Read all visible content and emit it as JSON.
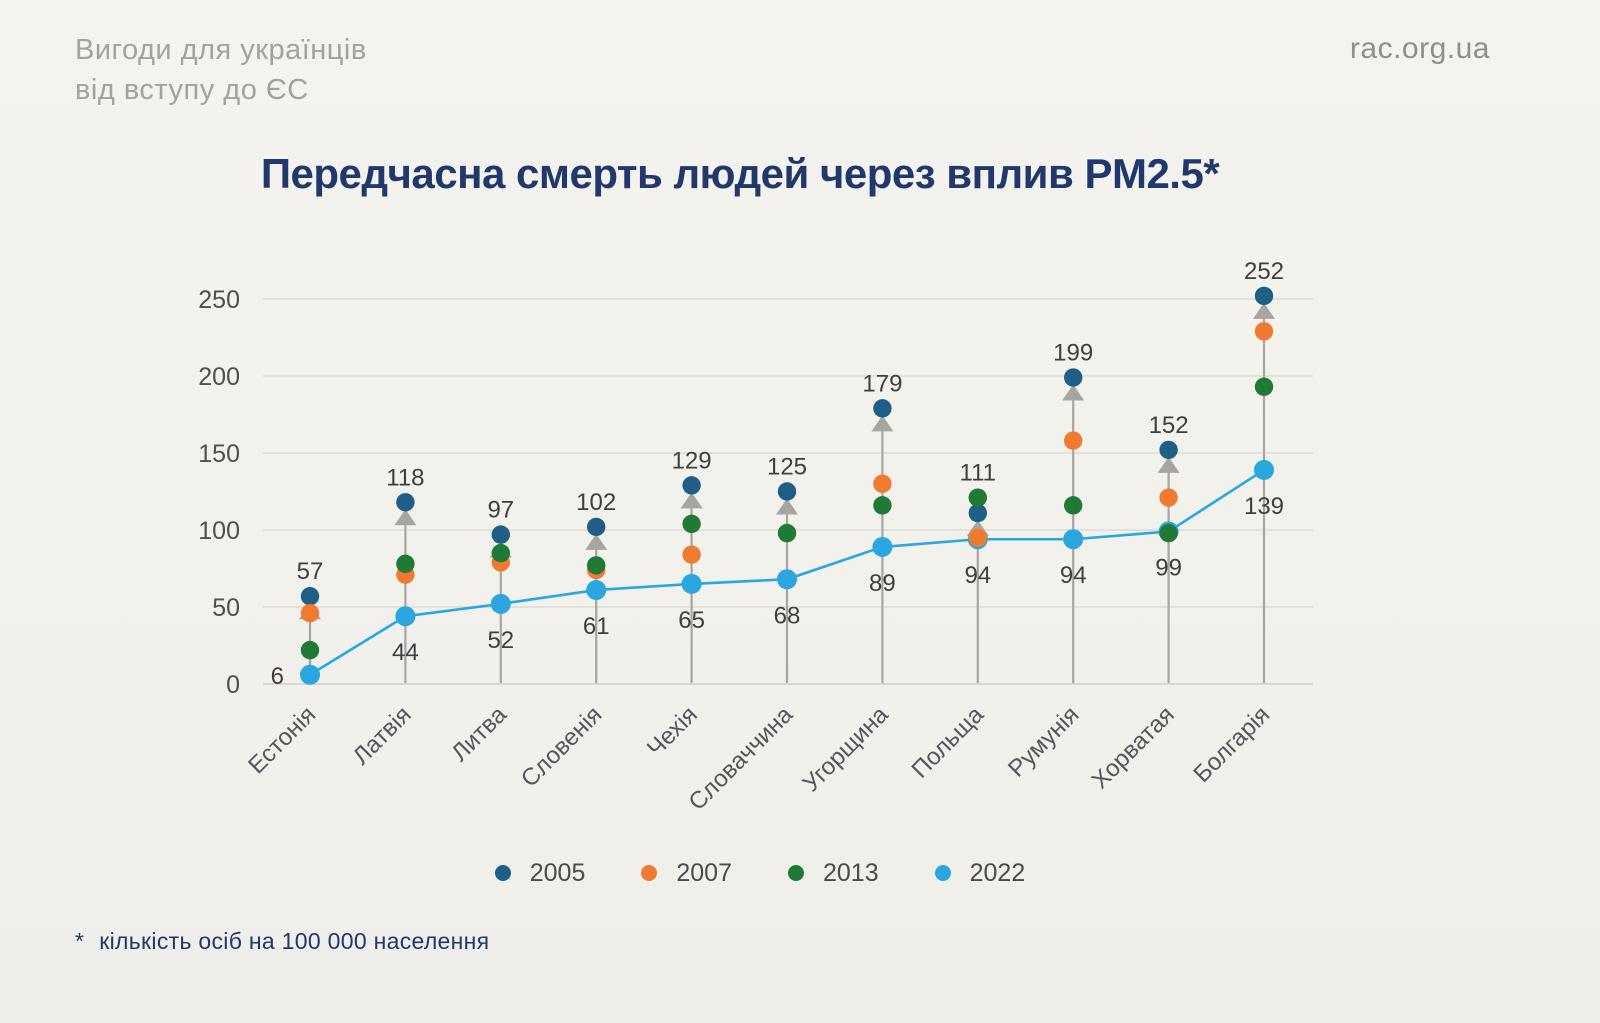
{
  "page": {
    "brand_line1": "Вигоди для українців",
    "brand_line2": "від вступу до ЄС",
    "site": "rac.org.ua",
    "footnote_star": "*",
    "footnote": "кількість осіб на 100 000 населення"
  },
  "title": "Передчасна смерть людей через вплив PM2.5*",
  "colors": {
    "background": "#f2f1ec",
    "title": "#20386b",
    "brand_gray": "#a3a29b",
    "site_gray": "#8f8e88",
    "axis_text": "#4f4f4f",
    "value_label_text": "#3f3f40",
    "category_text": "#55565a",
    "grid": "#dddbd5",
    "axis_line": "#cfcdc6",
    "stem": "#a7a5a0",
    "series_2005": "#1f5f87",
    "series_2007": "#f07a30",
    "series_2013": "#1f7a36",
    "series_2022": "#2aa7e0"
  },
  "chart_data": {
    "type": "scatter",
    "title": "Передчасна смерть людей через вплив PM2.5*",
    "ylabel": "",
    "xlabel": "",
    "ylim": [
      0,
      265
    ],
    "yticks": [
      0,
      50,
      100,
      150,
      200,
      250
    ],
    "grid": true,
    "legend_position": "bottom",
    "categories": [
      "Естонія",
      "Латвія",
      "Литва",
      "Словенія",
      "Чехія",
      "Словаччина",
      "Угорщина",
      "Польща",
      "Румунія",
      "Хорватая",
      "Болгарія"
    ],
    "series": [
      {
        "name": "2005",
        "color": "#1f5f87",
        "marker": "circle",
        "values": [
          57,
          118,
          97,
          102,
          129,
          125,
          179,
          111,
          199,
          152,
          252
        ]
      },
      {
        "name": "2007",
        "color": "#f07a30",
        "marker": "circle",
        "values": [
          46,
          71,
          79,
          74,
          84,
          98,
          130,
          95,
          158,
          121,
          229
        ]
      },
      {
        "name": "2013",
        "color": "#1f7a36",
        "marker": "circle",
        "values": [
          22,
          78,
          85,
          77,
          104,
          98,
          116,
          121,
          116,
          98,
          193
        ]
      },
      {
        "name": "2022",
        "color": "#2aa7e0",
        "marker": "circle",
        "line": true,
        "values": [
          6,
          44,
          52,
          61,
          65,
          68,
          89,
          94,
          94,
          99,
          139
        ]
      }
    ],
    "top_labels": [
      57,
      118,
      97,
      102,
      129,
      125,
      179,
      111,
      199,
      152,
      252
    ],
    "bottom_labels": [
      6,
      44,
      52,
      61,
      65,
      68,
      89,
      94,
      94,
      99,
      139
    ]
  }
}
